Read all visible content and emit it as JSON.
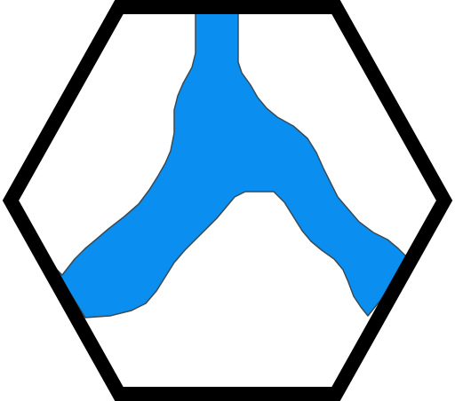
{
  "tile": {
    "background_color": "#ffffff",
    "border_color": "#000000",
    "river_color": "#0a8ff0",
    "river_outline_color": "#3a4a55",
    "icon": "river-fork-icon"
  }
}
